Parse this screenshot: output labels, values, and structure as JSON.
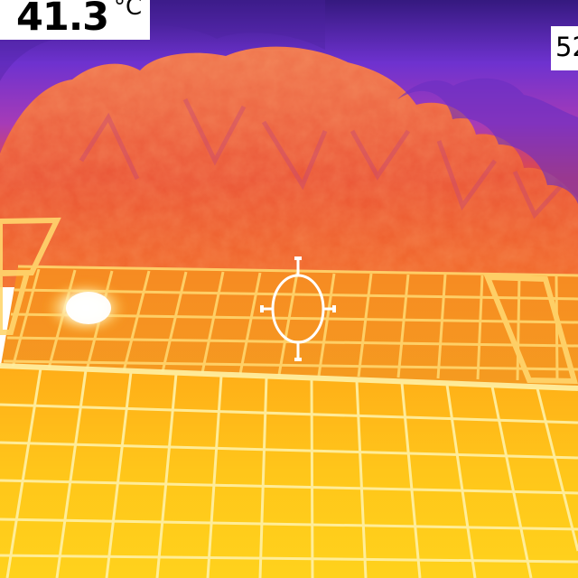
{
  "readouts": {
    "spot_temperature": "41.3",
    "temperature_unit": "°C",
    "scale_value_partial": "52"
  },
  "colors": {
    "cold_sky": "#3b1a88",
    "mid_sky": "#7a38d9",
    "warm_trees": "#ef5a38",
    "hot_panel": "#ffb31a",
    "panel_grid": "#ffe78a",
    "hotspot": "#ffffff",
    "crosshair": "#ffffff"
  },
  "icons": {
    "center_marker": "crosshair-reticle-icon"
  }
}
